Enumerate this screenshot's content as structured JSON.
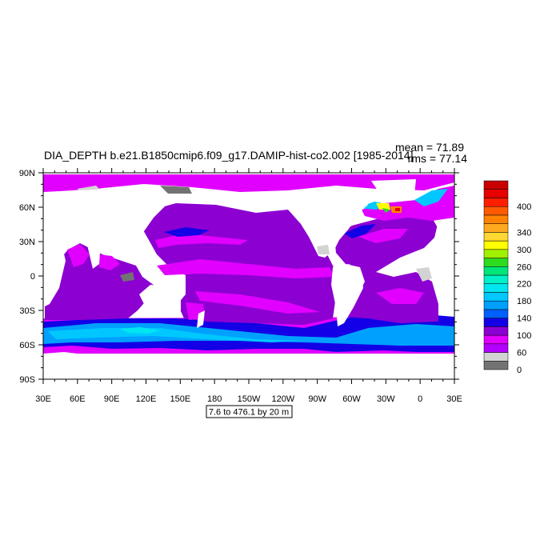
{
  "chart_data": {
    "type": "heatmap",
    "title": "DIA_DEPTH b.e21.B1850cmip6.f09_g17.DAMIP-hist-co2.002 [1985-2014]",
    "stats": {
      "mean": "mean = 71.89",
      "rms": "rms = 77.14"
    },
    "contour_info": "7.6 to 476.1 by 20 m",
    "x_ticks": [
      "30E",
      "60E",
      "90E",
      "120E",
      "150E",
      "180",
      "150W",
      "120W",
      "90W",
      "60W",
      "30W",
      "0",
      "30E"
    ],
    "y_ticks": [
      "90N",
      "60N",
      "30N",
      "0",
      "30S",
      "60S",
      "90S"
    ],
    "lon_range": [
      30,
      390
    ],
    "lat_range": [
      -90,
      90
    ],
    "colorbar": {
      "colors": [
        "#737373",
        "#d3d3d3",
        "#b400ff",
        "#e100ff",
        "#8c00d2",
        "#1400e6",
        "#0060ff",
        "#00a0ff",
        "#00c8ff",
        "#00e6f0",
        "#00f0c8",
        "#00e678",
        "#2ddc1e",
        "#a0f000",
        "#ffff00",
        "#ffd732",
        "#ffaa1e",
        "#ff8200",
        "#ff5a00",
        "#ff1e00",
        "#e60000",
        "#c80000"
      ],
      "labels": [
        "0",
        "60",
        "100",
        "140",
        "180",
        "220",
        "260",
        "300",
        "340",
        "400"
      ]
    }
  }
}
